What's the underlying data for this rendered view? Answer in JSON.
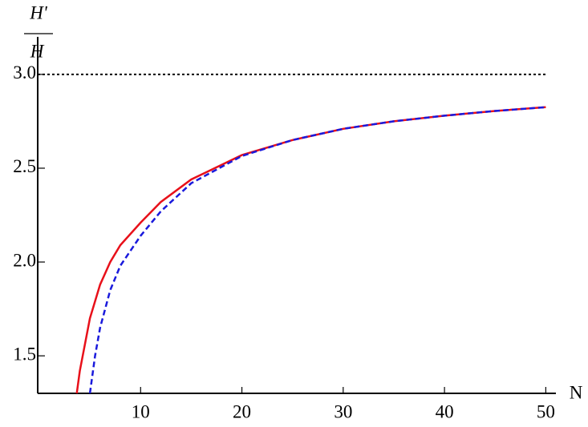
{
  "chart_data": {
    "type": "line",
    "ylabel_numerator": "H'",
    "ylabel_denominator": "H",
    "xlabel": "N",
    "xlim": [
      0,
      51
    ],
    "ylim": [
      1.3,
      3.2
    ],
    "xticks": [
      10,
      20,
      30,
      40,
      50
    ],
    "yticks": [
      1.5,
      {
        "value": 2,
        "label": "2.0"
      },
      2.5,
      {
        "value": 3,
        "label": "3.0"
      }
    ],
    "asymptote": {
      "value": 3,
      "to": 50,
      "color": "#000000"
    },
    "series": [
      {
        "color": "#e8101a",
        "style": "solid",
        "x": [
          3.7,
          4,
          5,
          6,
          7,
          8,
          10,
          12,
          15,
          20,
          25,
          30,
          35,
          40,
          45,
          50
        ],
        "values": [
          1.3,
          1.42,
          1.7,
          1.88,
          2.0,
          2.09,
          2.21,
          2.32,
          2.44,
          2.57,
          2.65,
          2.71,
          2.75,
          2.78,
          2.805,
          2.825
        ]
      },
      {
        "color": "#1a1adc",
        "style": "dashed",
        "x": [
          5,
          5.5,
          6,
          7,
          8,
          10,
          12,
          15,
          20,
          25,
          30,
          35,
          40,
          45,
          50
        ],
        "values": [
          1.3,
          1.5,
          1.65,
          1.85,
          1.98,
          2.14,
          2.27,
          2.42,
          2.565,
          2.65,
          2.71,
          2.75,
          2.78,
          2.805,
          2.825
        ]
      }
    ]
  }
}
